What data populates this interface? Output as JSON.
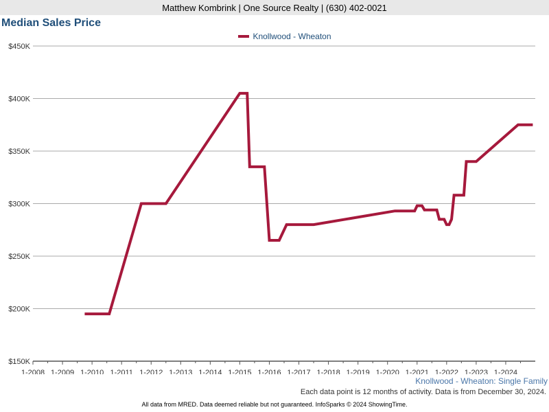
{
  "header": {
    "agent_info": "Matthew Kombrink | One Source Realty | (630) 402-0021"
  },
  "chart_title": "Median Sales Price",
  "series_caption": "Knollwood - Wheaton: Single Family",
  "data_note": "Each data point is 12 months of activity. Data is from December 30, 2024.",
  "footer": "All data from MRED. Data deemed reliable but not guaranteed. InfoSparks © 2024 ShowingTime.",
  "colors": {
    "series": "#a6193c",
    "title": "#1f4e79",
    "grid": "#aaaaaa",
    "axis": "#555555"
  },
  "chart_data": {
    "type": "line",
    "title": "Median Sales Price",
    "xlabel": "",
    "ylabel": "",
    "ylim": [
      150000,
      450000
    ],
    "xlim": [
      "2008-01",
      "2024-12"
    ],
    "grid": true,
    "legend_position": "top-center",
    "y_ticks": [
      "$150K",
      "$200K",
      "$250K",
      "$300K",
      "$350K",
      "$400K",
      "$450K"
    ],
    "x_ticks": [
      "1-2008",
      "1-2009",
      "1-2010",
      "1-2011",
      "1-2012",
      "1-2013",
      "1-2014",
      "1-2015",
      "1-2016",
      "1-2017",
      "1-2018",
      "1-2019",
      "1-2020",
      "1-2021",
      "1-2022",
      "1-2023",
      "1-2024"
    ],
    "series": [
      {
        "name": "Knollwood - Wheaton",
        "points": [
          [
            "2009-10",
            195000
          ],
          [
            "2010-08",
            195000
          ],
          [
            "2011-09",
            300000
          ],
          [
            "2012-07",
            300000
          ],
          [
            "2015-01",
            405000
          ],
          [
            "2015-04",
            405000
          ],
          [
            "2015-05",
            335000
          ],
          [
            "2015-11",
            335000
          ],
          [
            "2016-01",
            265000
          ],
          [
            "2016-05",
            265000
          ],
          [
            "2016-08",
            280000
          ],
          [
            "2017-07",
            280000
          ],
          [
            "2020-04",
            293000
          ],
          [
            "2020-12",
            293000
          ],
          [
            "2021-01",
            298000
          ],
          [
            "2021-03",
            298000
          ],
          [
            "2021-04",
            294000
          ],
          [
            "2021-09",
            294000
          ],
          [
            "2021-10",
            285000
          ],
          [
            "2021-12",
            285000
          ],
          [
            "2022-01",
            280000
          ],
          [
            "2022-02",
            280000
          ],
          [
            "2022-03",
            285000
          ],
          [
            "2022-04",
            308000
          ],
          [
            "2022-08",
            308000
          ],
          [
            "2022-09",
            340000
          ],
          [
            "2023-01",
            340000
          ],
          [
            "2024-06",
            375000
          ],
          [
            "2024-12",
            375000
          ]
        ]
      }
    ]
  }
}
